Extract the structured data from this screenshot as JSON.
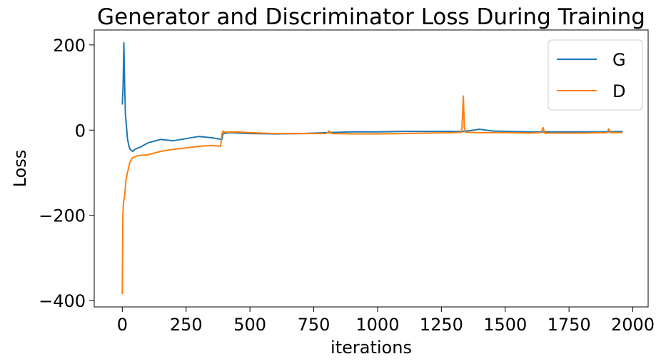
{
  "chart_data": {
    "type": "line",
    "title": "Generator and Discriminator Loss During Training",
    "xlabel": "iterations",
    "ylabel": "Loss",
    "xlim": [
      -110,
      2060
    ],
    "ylim": [
      -415,
      235
    ],
    "xticks": [
      0,
      250,
      500,
      750,
      1000,
      1250,
      1500,
      1750,
      2000
    ],
    "yticks": [
      -400,
      -200,
      0,
      200
    ],
    "ytick_labels": [
      "−400",
      "−200",
      "0",
      "200"
    ],
    "grid": false,
    "legend": {
      "placement": "top-right"
    },
    "series": [
      {
        "name": "G",
        "color": "#1f77b4",
        "points": [
          [
            0,
            60
          ],
          [
            3,
            100
          ],
          [
            6,
            205
          ],
          [
            9,
            110
          ],
          [
            12,
            40
          ],
          [
            16,
            10
          ],
          [
            20,
            -20
          ],
          [
            25,
            -35
          ],
          [
            30,
            -45
          ],
          [
            40,
            -50
          ],
          [
            50,
            -45
          ],
          [
            70,
            -40
          ],
          [
            100,
            -30
          ],
          [
            150,
            -22
          ],
          [
            200,
            -25
          ],
          [
            250,
            -20
          ],
          [
            300,
            -15
          ],
          [
            350,
            -18
          ],
          [
            390,
            -22
          ],
          [
            395,
            -8
          ],
          [
            420,
            -6
          ],
          [
            500,
            -8
          ],
          [
            600,
            -9
          ],
          [
            700,
            -8
          ],
          [
            800,
            -6
          ],
          [
            900,
            -4
          ],
          [
            1000,
            -4
          ],
          [
            1100,
            -3
          ],
          [
            1200,
            -3
          ],
          [
            1300,
            -3
          ],
          [
            1330,
            -3
          ],
          [
            1350,
            -2
          ],
          [
            1400,
            2
          ],
          [
            1450,
            -2
          ],
          [
            1500,
            -3
          ],
          [
            1600,
            -4
          ],
          [
            1700,
            -4
          ],
          [
            1800,
            -4
          ],
          [
            1900,
            -4
          ],
          [
            1960,
            -3
          ]
        ]
      },
      {
        "name": "D",
        "color": "#ff7f0e",
        "points": [
          [
            0,
            -385
          ],
          [
            2,
            -200
          ],
          [
            4,
            -175
          ],
          [
            6,
            -165
          ],
          [
            10,
            -150
          ],
          [
            14,
            -120
          ],
          [
            20,
            -100
          ],
          [
            30,
            -75
          ],
          [
            40,
            -65
          ],
          [
            60,
            -60
          ],
          [
            100,
            -58
          ],
          [
            150,
            -50
          ],
          [
            200,
            -45
          ],
          [
            250,
            -42
          ],
          [
            300,
            -38
          ],
          [
            350,
            -36
          ],
          [
            385,
            -38
          ],
          [
            390,
            -10
          ],
          [
            395,
            -2
          ],
          [
            400,
            -5
          ],
          [
            450,
            -4
          ],
          [
            500,
            -6
          ],
          [
            600,
            -8
          ],
          [
            700,
            -8
          ],
          [
            800,
            -8
          ],
          [
            810,
            -2
          ],
          [
            820,
            -8
          ],
          [
            900,
            -9
          ],
          [
            1000,
            -9
          ],
          [
            1100,
            -8
          ],
          [
            1200,
            -7
          ],
          [
            1300,
            -6
          ],
          [
            1330,
            -5
          ],
          [
            1336,
            80
          ],
          [
            1340,
            5
          ],
          [
            1345,
            -5
          ],
          [
            1400,
            -6
          ],
          [
            1500,
            -6
          ],
          [
            1600,
            -7
          ],
          [
            1640,
            -6
          ],
          [
            1648,
            6
          ],
          [
            1655,
            -7
          ],
          [
            1700,
            -7
          ],
          [
            1800,
            -7
          ],
          [
            1900,
            -6
          ],
          [
            1905,
            3
          ],
          [
            1912,
            -6
          ],
          [
            1960,
            -6
          ]
        ]
      }
    ]
  }
}
